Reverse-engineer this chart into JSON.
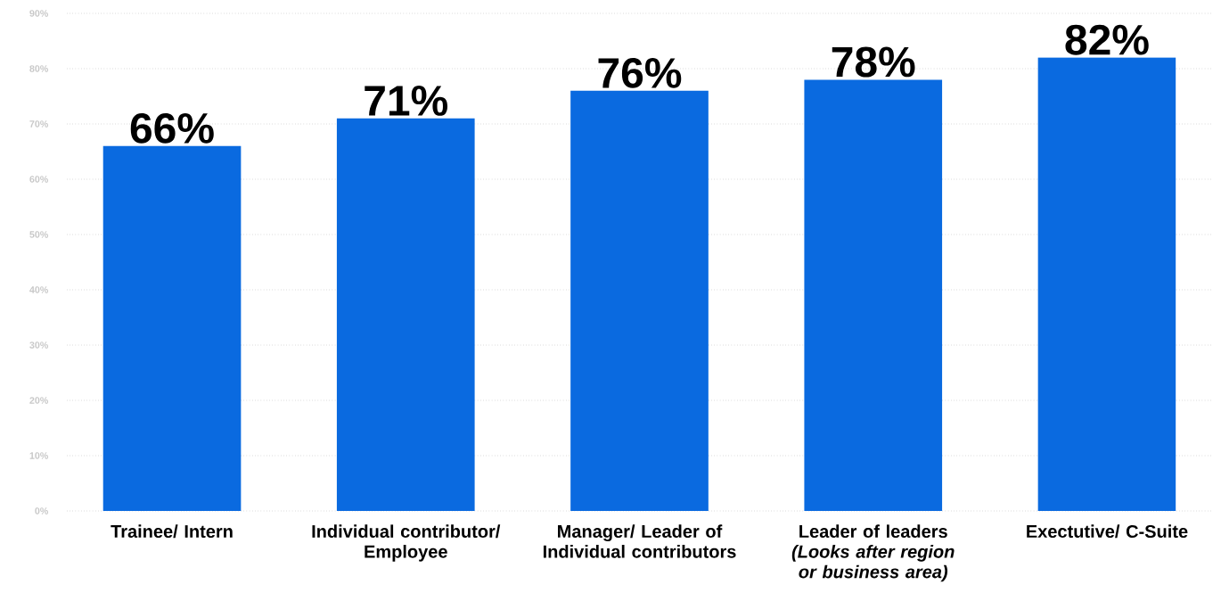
{
  "chart_data": {
    "type": "bar",
    "categories": [
      "Trainee/ Intern",
      "Individual contributor/ Employee",
      "Manager/ Leader of Individual contributors",
      "Leader of leaders *(Looks after region or business area)*",
      "Exectutive/ C-Suite"
    ],
    "values": [
      66,
      71,
      76,
      78,
      82
    ],
    "value_labels": [
      "66%",
      "71%",
      "76%",
      "78%",
      "82%"
    ],
    "color": "#0a6ae0",
    "ylim": [
      0,
      90
    ],
    "yticks": [
      {
        "value": 0,
        "label": "0%"
      },
      {
        "value": 10,
        "label": "10%"
      },
      {
        "value": 20,
        "label": "20%"
      },
      {
        "value": 30,
        "label": "30%"
      },
      {
        "value": 40,
        "label": "40%"
      },
      {
        "value": 50,
        "label": "50%"
      },
      {
        "value": 60,
        "label": "60%"
      },
      {
        "value": 70,
        "label": "70%"
      },
      {
        "value": 80,
        "label": "80%"
      },
      {
        "value": 90,
        "label": "90%"
      }
    ],
    "grid": "y"
  }
}
